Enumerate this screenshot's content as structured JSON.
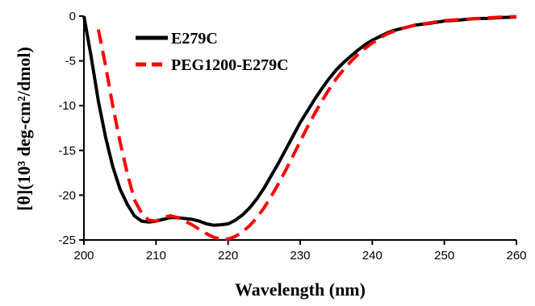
{
  "chart_data": {
    "type": "line",
    "xlabel": "Wavelength (nm)",
    "ylabel": "[θ](10³ deg-cm²/dmol)",
    "xlim": [
      200,
      260
    ],
    "ylim": [
      -25,
      0
    ],
    "x_ticks": [
      "200",
      "210",
      "220",
      "230",
      "240",
      "250",
      "260"
    ],
    "y_ticks": [
      "0",
      "-5",
      "-10",
      "-15",
      "-20",
      "-25"
    ],
    "grid": false,
    "legend_position": "top-left",
    "series": [
      {
        "name": "E279C",
        "color": "#000000",
        "style": "solid",
        "points": [
          [
            200,
            0
          ],
          [
            201,
            -4.5
          ],
          [
            202,
            -9.5
          ],
          [
            203,
            -13.5
          ],
          [
            204,
            -16.8
          ],
          [
            205,
            -19.3
          ],
          [
            206,
            -21
          ],
          [
            207,
            -22.3
          ],
          [
            208,
            -22.9
          ],
          [
            209,
            -23
          ],
          [
            210,
            -22.9
          ],
          [
            211,
            -22.7
          ],
          [
            212,
            -22.5
          ],
          [
            213,
            -22.5
          ],
          [
            214,
            -22.6
          ],
          [
            215,
            -22.7
          ],
          [
            216,
            -22.9
          ],
          [
            217,
            -23.2
          ],
          [
            218,
            -23.35
          ],
          [
            219,
            -23.3
          ],
          [
            220,
            -23.2
          ],
          [
            221,
            -22.8
          ],
          [
            222,
            -22.2
          ],
          [
            223,
            -21.4
          ],
          [
            224,
            -20.4
          ],
          [
            225,
            -19.2
          ],
          [
            226,
            -17.8
          ],
          [
            227,
            -16.4
          ],
          [
            228,
            -14.9
          ],
          [
            229,
            -13.4
          ],
          [
            230,
            -11.9
          ],
          [
            231,
            -10.6
          ],
          [
            232,
            -9.3
          ],
          [
            233,
            -8.1
          ],
          [
            234,
            -7
          ],
          [
            235,
            -6
          ],
          [
            236,
            -5.2
          ],
          [
            237,
            -4.5
          ],
          [
            238,
            -3.8
          ],
          [
            239,
            -3.2
          ],
          [
            240,
            -2.7
          ],
          [
            241,
            -2.3
          ],
          [
            242,
            -1.9
          ],
          [
            243,
            -1.6
          ],
          [
            244,
            -1.4
          ],
          [
            245,
            -1.2
          ],
          [
            246,
            -1
          ],
          [
            248,
            -0.8
          ],
          [
            250,
            -0.55
          ],
          [
            252,
            -0.45
          ],
          [
            254,
            -0.3
          ],
          [
            256,
            -0.25
          ],
          [
            258,
            -0.15
          ],
          [
            260,
            -0.1
          ]
        ]
      },
      {
        "name": "PEG1200-E279C",
        "color": "#ff0000",
        "style": "dashed",
        "points": [
          [
            202,
            -1.5
          ],
          [
            203,
            -5.5
          ],
          [
            204,
            -10
          ],
          [
            205,
            -14
          ],
          [
            206,
            -17.5
          ],
          [
            207,
            -20.5
          ],
          [
            208,
            -22
          ],
          [
            209,
            -22.8
          ],
          [
            210,
            -22.9
          ],
          [
            211,
            -22.5
          ],
          [
            212,
            -22.3
          ],
          [
            213,
            -22.5
          ],
          [
            214,
            -22.9
          ],
          [
            215,
            -23.3
          ],
          [
            216,
            -23.8
          ],
          [
            217,
            -24.3
          ],
          [
            218,
            -24.7
          ],
          [
            219,
            -24.9
          ],
          [
            220,
            -24.9
          ],
          [
            221,
            -24.6
          ],
          [
            222,
            -24.1
          ],
          [
            223,
            -23.4
          ],
          [
            224,
            -22.5
          ],
          [
            225,
            -21.4
          ],
          [
            226,
            -20.1
          ],
          [
            227,
            -18.7
          ],
          [
            228,
            -17.2
          ],
          [
            229,
            -15.6
          ],
          [
            230,
            -14
          ],
          [
            231,
            -12.4
          ],
          [
            232,
            -10.9
          ],
          [
            233,
            -9.5
          ],
          [
            234,
            -8.2
          ],
          [
            235,
            -7
          ],
          [
            236,
            -6
          ],
          [
            237,
            -5.1
          ],
          [
            238,
            -4.3
          ],
          [
            239,
            -3.6
          ],
          [
            240,
            -3
          ],
          [
            241,
            -2.5
          ],
          [
            242,
            -2
          ],
          [
            243,
            -1.7
          ],
          [
            244,
            -1.4
          ],
          [
            245,
            -1.2
          ],
          [
            246,
            -1
          ],
          [
            248,
            -0.75
          ],
          [
            250,
            -0.5
          ],
          [
            252,
            -0.4
          ],
          [
            254,
            -0.3
          ],
          [
            256,
            -0.2
          ],
          [
            258,
            -0.1
          ],
          [
            260,
            -0.05
          ]
        ]
      }
    ]
  }
}
